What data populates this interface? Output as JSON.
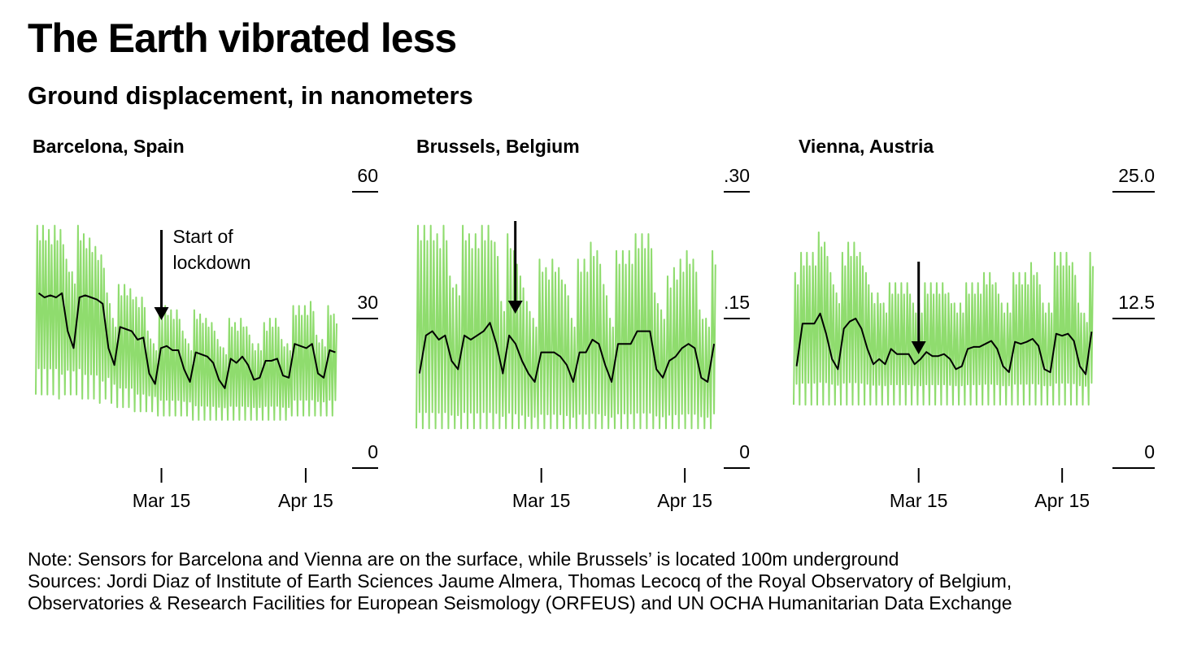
{
  "title": "The Earth vibrated less",
  "subtitle": "Ground displacement, in nanometers",
  "colors": {
    "raw": "#8fdc6e",
    "avg": "#000000",
    "axis": "#000000"
  },
  "annotation": {
    "line1": "Start of",
    "line2": "lockdown",
    "date": "2020-03-14"
  },
  "note": "Note: Sensors for Barcelona and Vienna are on the surface, while Brussels’ is located 100m underground",
  "sources": [
    "Sources: Jordi Diaz of Institute of Earth Sciences Jaume Almera, Thomas Lecocq of the Royal Observatory of Belgium,",
    "Observatories & Research Facilities for European Seismology (ORFEUS) and UN OCHA Humanitarian Data Exchange"
  ],
  "chart_data": [
    {
      "type": "line",
      "title": "Barcelona, Spain",
      "x_range": [
        "2020-02-17",
        "2020-04-22"
      ],
      "x_ticks": [
        {
          "date": "2020-03-15",
          "label": "Mar 15"
        },
        {
          "date": "2020-04-15",
          "label": "Apr 15"
        }
      ],
      "ylim": [
        0,
        60
      ],
      "y_ticks": [
        {
          "value": 60,
          "label": "60"
        },
        {
          "value": 30,
          "label": "30"
        },
        {
          "value": 0,
          "label": "0"
        }
      ],
      "series": [
        {
          "daily_avg": [
            36,
            35,
            35.5,
            35,
            36,
            27,
            23,
            35,
            35.5,
            35,
            34.5,
            33.5,
            23,
            19,
            28,
            27.5,
            27,
            25,
            25.5,
            17,
            14.5,
            23,
            23.5,
            22.5,
            22.5,
            18,
            15,
            22,
            21.5,
            21,
            19.5,
            15.5,
            13.5,
            20.5,
            19.5,
            21,
            19,
            15.5,
            16,
            20,
            20,
            20.5,
            16.5,
            16,
            24,
            23.5,
            23,
            24,
            17,
            16,
            22.5,
            22
          ]
        },
        {
          "raw_hourly": {
            "peak": [
              52,
              52,
              51,
              52,
              51,
              44,
              41,
              52,
              50,
              49,
              47,
              45,
              36,
              30,
              38,
              38,
              37,
              35,
              35,
              27,
              24,
              32,
              33,
              32,
              32,
              27,
              24,
              32,
              31,
              30,
              29,
              25,
              23,
              30,
              29,
              30,
              28,
              24,
              24,
              29,
              30,
              30,
              25,
              24,
              33,
              33,
              33,
              34,
              26,
              25,
              33,
              31
            ],
            "trough": [
              12,
              12,
              12,
              12,
              11,
              12,
              12,
              12,
              11,
              11,
              11,
              10,
              11,
              10,
              9,
              9,
              9,
              8,
              8,
              8,
              8,
              7,
              7,
              7,
              7,
              7,
              7,
              6,
              6,
              6,
              6,
              6,
              6,
              6,
              6,
              6,
              6,
              6,
              6,
              6,
              6,
              6,
              6,
              6,
              7,
              7,
              7,
              7,
              7,
              7,
              7,
              7
            ]
          }
        }
      ]
    },
    {
      "type": "line",
      "title": "Brussels, Belgium",
      "x_range": [
        "2020-02-17",
        "2020-04-22"
      ],
      "x_ticks": [
        {
          "date": "2020-03-15",
          "label": "Mar 15"
        },
        {
          "date": "2020-04-15",
          "label": "Apr 15"
        }
      ],
      "ylim": [
        0,
        0.3
      ],
      "y_ticks": [
        {
          "value": 0.3,
          "label": ".30"
        },
        {
          "value": 0.15,
          "label": ".15"
        },
        {
          "value": 0,
          "label": "0"
        }
      ],
      "series": [
        {
          "daily_avg": [
            0.085,
            0.13,
            0.135,
            0.125,
            0.13,
            0.1,
            0.09,
            0.13,
            0.125,
            0.13,
            0.135,
            0.145,
            0.12,
            0.085,
            0.13,
            0.12,
            0.1,
            0.085,
            0.075,
            0.11,
            0.11,
            0.11,
            0.105,
            0.095,
            0.075,
            0.11,
            0.11,
            0.125,
            0.12,
            0.095,
            0.075,
            0.12,
            0.12,
            0.12,
            0.135,
            0.135,
            0.135,
            0.09,
            0.08,
            0.1,
            0.105,
            0.115,
            0.12,
            0.115,
            0.08,
            0.075,
            0.12
          ]
        },
        {
          "raw_hourly": {
            "peak": [
              0.26,
              0.26,
              0.26,
              0.25,
              0.26,
              0.2,
              0.19,
              0.26,
              0.25,
              0.25,
              0.26,
              0.26,
              0.24,
              0.17,
              0.25,
              0.23,
              0.2,
              0.17,
              0.15,
              0.22,
              0.21,
              0.22,
              0.21,
              0.19,
              0.15,
              0.22,
              0.22,
              0.24,
              0.23,
              0.19,
              0.15,
              0.23,
              0.23,
              0.23,
              0.25,
              0.25,
              0.25,
              0.18,
              0.16,
              0.2,
              0.21,
              0.22,
              0.23,
              0.22,
              0.16,
              0.15,
              0.23
            ],
            "trough": [
              0.02,
              0.02,
              0.02,
              0.02,
              0.02,
              0.02,
              0.02,
              0.02,
              0.02,
              0.02,
              0.02,
              0.02,
              0.02,
              0.02,
              0.02,
              0.02,
              0.02,
              0.02,
              0.02,
              0.02,
              0.02,
              0.02,
              0.02,
              0.02,
              0.02,
              0.02,
              0.02,
              0.02,
              0.02,
              0.02,
              0.02,
              0.02,
              0.02,
              0.02,
              0.02,
              0.02,
              0.02,
              0.02,
              0.02,
              0.02,
              0.02,
              0.02,
              0.02,
              0.02,
              0.02,
              0.02,
              0.02
            ]
          }
        }
      ]
    },
    {
      "type": "line",
      "title": "Vienna, Austria",
      "x_range": [
        "2020-02-17",
        "2020-04-22"
      ],
      "x_ticks": [
        {
          "date": "2020-03-15",
          "label": "Mar 15"
        },
        {
          "date": "2020-04-15",
          "label": "Apr 15"
        }
      ],
      "ylim": [
        0,
        25
      ],
      "y_ticks": [
        {
          "value": 25,
          "label": "25.0"
        },
        {
          "value": 12.5,
          "label": "12.5"
        },
        {
          "value": 0,
          "label": "0"
        }
      ],
      "series": [
        {
          "daily_avg": [
            7.8,
            12,
            12,
            12,
            13,
            11,
            8.5,
            7.5,
            11.5,
            12.2,
            12.5,
            11.5,
            9.5,
            8,
            8.5,
            8,
            9.5,
            9,
            9,
            9,
            8,
            8.5,
            9.2,
            8.8,
            8.8,
            9,
            8.5,
            7.5,
            7.8,
            9.5,
            9.7,
            9.7,
            10,
            10.3,
            9.5,
            7.8,
            7.2,
            10.2,
            10,
            10.2,
            10.5,
            9.8,
            7.5,
            7.2,
            11,
            10.8,
            11,
            10.3,
            7.8,
            7,
            11.2
          ]
        },
        {
          "raw_hourly": {
            "peak": [
              17,
              19,
              19,
              19,
              21,
              20,
              17,
              15,
              19,
              20,
              20,
              19,
              17,
              15,
              15,
              14,
              16,
              16,
              16,
              16,
              14,
              14,
              16,
              16,
              16,
              16,
              15,
              14,
              14,
              16,
              16,
              16,
              17,
              17,
              16,
              14,
              14,
              17,
              17,
              17,
              18,
              17,
              14,
              14,
              19,
              19,
              19,
              18,
              14,
              13,
              19
            ],
            "trough": [
              4,
              4,
              4,
              4,
              4,
              4,
              4,
              4,
              4,
              4,
              4,
              4,
              4,
              4,
              4,
              4,
              4,
              4,
              4,
              4,
              4,
              4,
              4,
              4,
              4,
              4,
              4,
              4,
              4,
              4,
              4,
              4,
              4,
              4,
              4,
              4,
              4,
              4,
              4,
              4,
              4,
              4,
              4,
              4,
              4,
              4,
              4,
              4,
              4,
              4,
              4
            ]
          }
        }
      ]
    }
  ]
}
